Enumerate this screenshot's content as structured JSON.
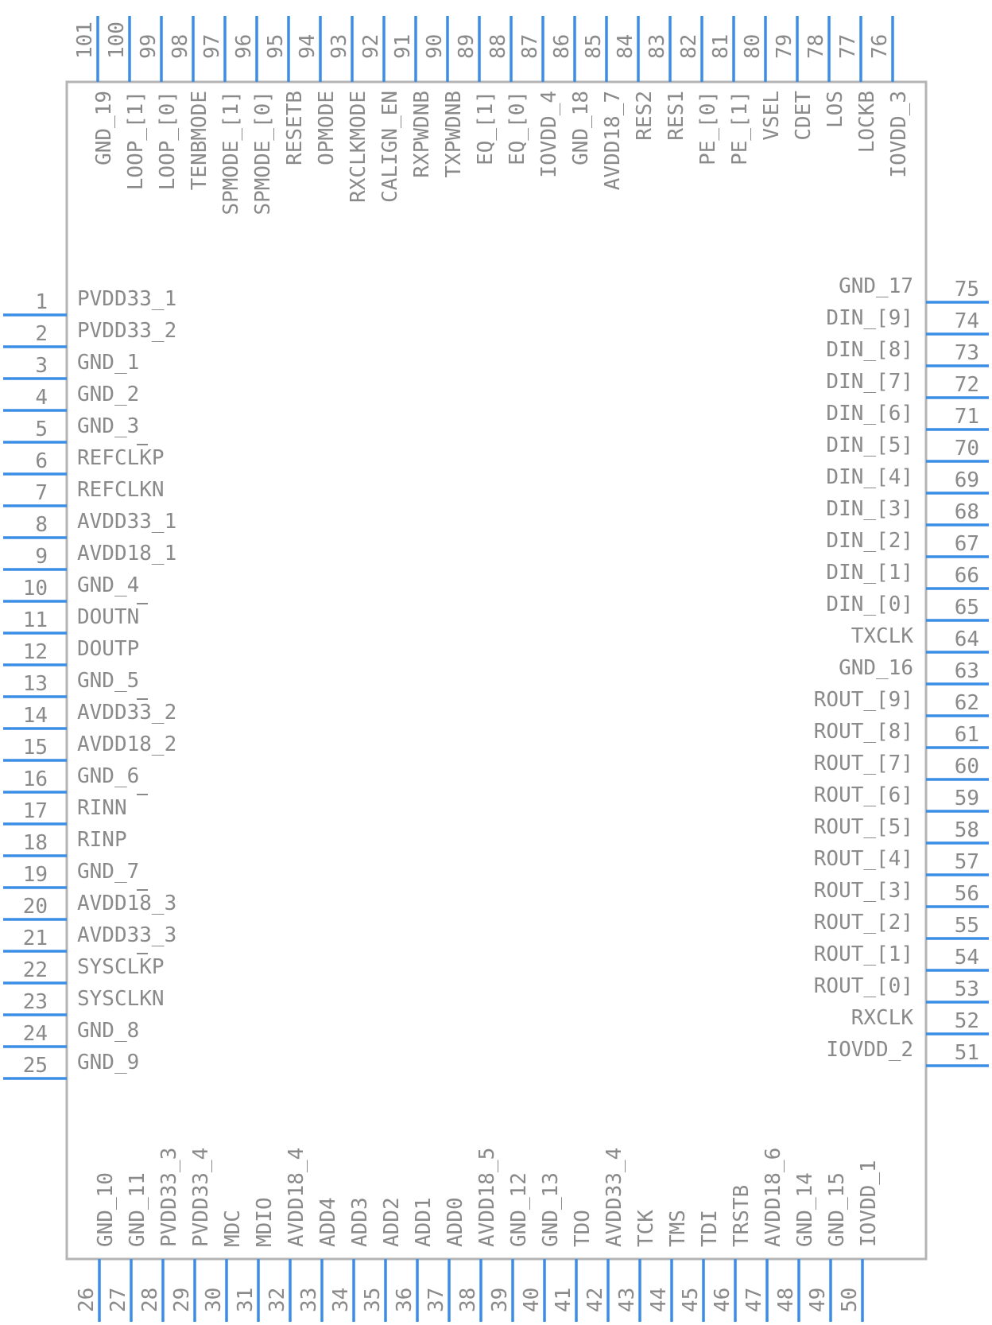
{
  "component": {
    "colors": {
      "pin": "#3b8ee6",
      "outline": "#b4b4b4",
      "text": "#8a8a8a",
      "background": "#ffffff"
    },
    "pins": {
      "left": [
        {
          "num": "1",
          "name": "PVDD33_1"
        },
        {
          "num": "2",
          "name": "PVDD33_2"
        },
        {
          "num": "3",
          "name": "GND_1"
        },
        {
          "num": "4",
          "name": "GND_2"
        },
        {
          "num": "5",
          "name": "GND_3"
        },
        {
          "num": "6",
          "name": "REFCLKP",
          "bar": true
        },
        {
          "num": "7",
          "name": "REFCLKN"
        },
        {
          "num": "8",
          "name": "AVDD33_1"
        },
        {
          "num": "9",
          "name": "AVDD18_1"
        },
        {
          "num": "10",
          "name": "GND_4"
        },
        {
          "num": "11",
          "name": "DOUTN",
          "bar": true
        },
        {
          "num": "12",
          "name": "DOUTP"
        },
        {
          "num": "13",
          "name": "GND_5"
        },
        {
          "num": "14",
          "name": "AVDD33_2",
          "bar": true
        },
        {
          "num": "15",
          "name": "AVDD18_2"
        },
        {
          "num": "16",
          "name": "GND_6"
        },
        {
          "num": "17",
          "name": "RINN",
          "bar": true
        },
        {
          "num": "18",
          "name": "RINP"
        },
        {
          "num": "19",
          "name": "GND_7"
        },
        {
          "num": "20",
          "name": "AVDD18_3",
          "bar": true
        },
        {
          "num": "21",
          "name": "AVDD33_3"
        },
        {
          "num": "22",
          "name": "SYSCLKP",
          "bar": true
        },
        {
          "num": "23",
          "name": "SYSCLKN"
        },
        {
          "num": "24",
          "name": "GND_8"
        },
        {
          "num": "25",
          "name": "GND_9"
        }
      ],
      "bottom": [
        {
          "num": "26",
          "name": "GND_10"
        },
        {
          "num": "27",
          "name": "GND_11"
        },
        {
          "num": "28",
          "name": "PVDD33_3"
        },
        {
          "num": "29",
          "name": "PVDD33_4"
        },
        {
          "num": "30",
          "name": "MDC"
        },
        {
          "num": "31",
          "name": "MDIO"
        },
        {
          "num": "32",
          "name": "AVDD18_4"
        },
        {
          "num": "33",
          "name": "ADD4"
        },
        {
          "num": "34",
          "name": "ADD3"
        },
        {
          "num": "35",
          "name": "ADD2"
        },
        {
          "num": "36",
          "name": "ADD1"
        },
        {
          "num": "37",
          "name": "ADD0"
        },
        {
          "num": "38",
          "name": "AVDD18_5"
        },
        {
          "num": "39",
          "name": "GND_12"
        },
        {
          "num": "40",
          "name": "GND_13"
        },
        {
          "num": "41",
          "name": "TDO"
        },
        {
          "num": "42",
          "name": "AVDD33_4"
        },
        {
          "num": "43",
          "name": "TCK"
        },
        {
          "num": "44",
          "name": "TMS"
        },
        {
          "num": "45",
          "name": "TDI"
        },
        {
          "num": "46",
          "name": "TRSTB"
        },
        {
          "num": "47",
          "name": "AVDD18_6"
        },
        {
          "num": "48",
          "name": "GND_14"
        },
        {
          "num": "49",
          "name": "GND_15"
        },
        {
          "num": "50",
          "name": "IOVDD_1"
        }
      ],
      "right": [
        {
          "num": "51",
          "name": "IOVDD_2"
        },
        {
          "num": "52",
          "name": "RXCLK",
          "bar": true
        },
        {
          "num": "53",
          "name": "ROUT_[0]"
        },
        {
          "num": "54",
          "name": "ROUT_[1]"
        },
        {
          "num": "55",
          "name": "ROUT_[2]"
        },
        {
          "num": "56",
          "name": "ROUT_[3]"
        },
        {
          "num": "57",
          "name": "ROUT_[4]"
        },
        {
          "num": "58",
          "name": "ROUT_[5]"
        },
        {
          "num": "59",
          "name": "ROUT_[6]"
        },
        {
          "num": "60",
          "name": "ROUT_[7]"
        },
        {
          "num": "61",
          "name": "ROUT_[8]"
        },
        {
          "num": "62",
          "name": "ROUT_[9]"
        },
        {
          "num": "63",
          "name": "GND_16"
        },
        {
          "num": "64",
          "name": "TXCLK",
          "bar": true
        },
        {
          "num": "65",
          "name": "DIN_[0]"
        },
        {
          "num": "66",
          "name": "DIN_[1]"
        },
        {
          "num": "67",
          "name": "DIN_[2]"
        },
        {
          "num": "68",
          "name": "DIN_[3]"
        },
        {
          "num": "69",
          "name": "DIN_[4]"
        },
        {
          "num": "70",
          "name": "DIN_[5]"
        },
        {
          "num": "71",
          "name": "DIN_[6]"
        },
        {
          "num": "72",
          "name": "DIN_[7]"
        },
        {
          "num": "73",
          "name": "DIN_[8]"
        },
        {
          "num": "74",
          "name": "DIN_[9]"
        },
        {
          "num": "75",
          "name": "GND_17"
        }
      ],
      "top": [
        {
          "num": "76",
          "name": "IOVDD_3"
        },
        {
          "num": "77",
          "name": "LOCKB"
        },
        {
          "num": "78",
          "name": "LOS"
        },
        {
          "num": "79",
          "name": "CDET"
        },
        {
          "num": "80",
          "name": "VSEL",
          "bar": true
        },
        {
          "num": "81",
          "name": "PE_[1]"
        },
        {
          "num": "82",
          "name": "PE_[0]"
        },
        {
          "num": "83",
          "name": "RES1"
        },
        {
          "num": "84",
          "name": "RES2",
          "bar": true
        },
        {
          "num": "85",
          "name": "AVDD18_7"
        },
        {
          "num": "86",
          "name": "GND_18"
        },
        {
          "num": "87",
          "name": "IOVDD_4"
        },
        {
          "num": "88",
          "name": "EQ_[0]"
        },
        {
          "num": "89",
          "name": "EQ_[1]"
        },
        {
          "num": "90",
          "name": "TXPWDNB"
        },
        {
          "num": "91",
          "name": "RXPWDNB",
          "bar": true
        },
        {
          "num": "92",
          "name": "CALIGN_EN"
        },
        {
          "num": "93",
          "name": "RXCLKMODE"
        },
        {
          "num": "94",
          "name": "OPMODE"
        },
        {
          "num": "95",
          "name": "RESETB",
          "bar": true
        },
        {
          "num": "96",
          "name": "SPMODE_[0]"
        },
        {
          "num": "97",
          "name": "SPMODE_[1]"
        },
        {
          "num": "98",
          "name": "TENBMODE",
          "bar": true
        },
        {
          "num": "99",
          "name": "LOOP_[0]"
        },
        {
          "num": "100",
          "name": "LOOP_[1]"
        },
        {
          "num": "101",
          "name": "GND_19"
        }
      ]
    }
  }
}
